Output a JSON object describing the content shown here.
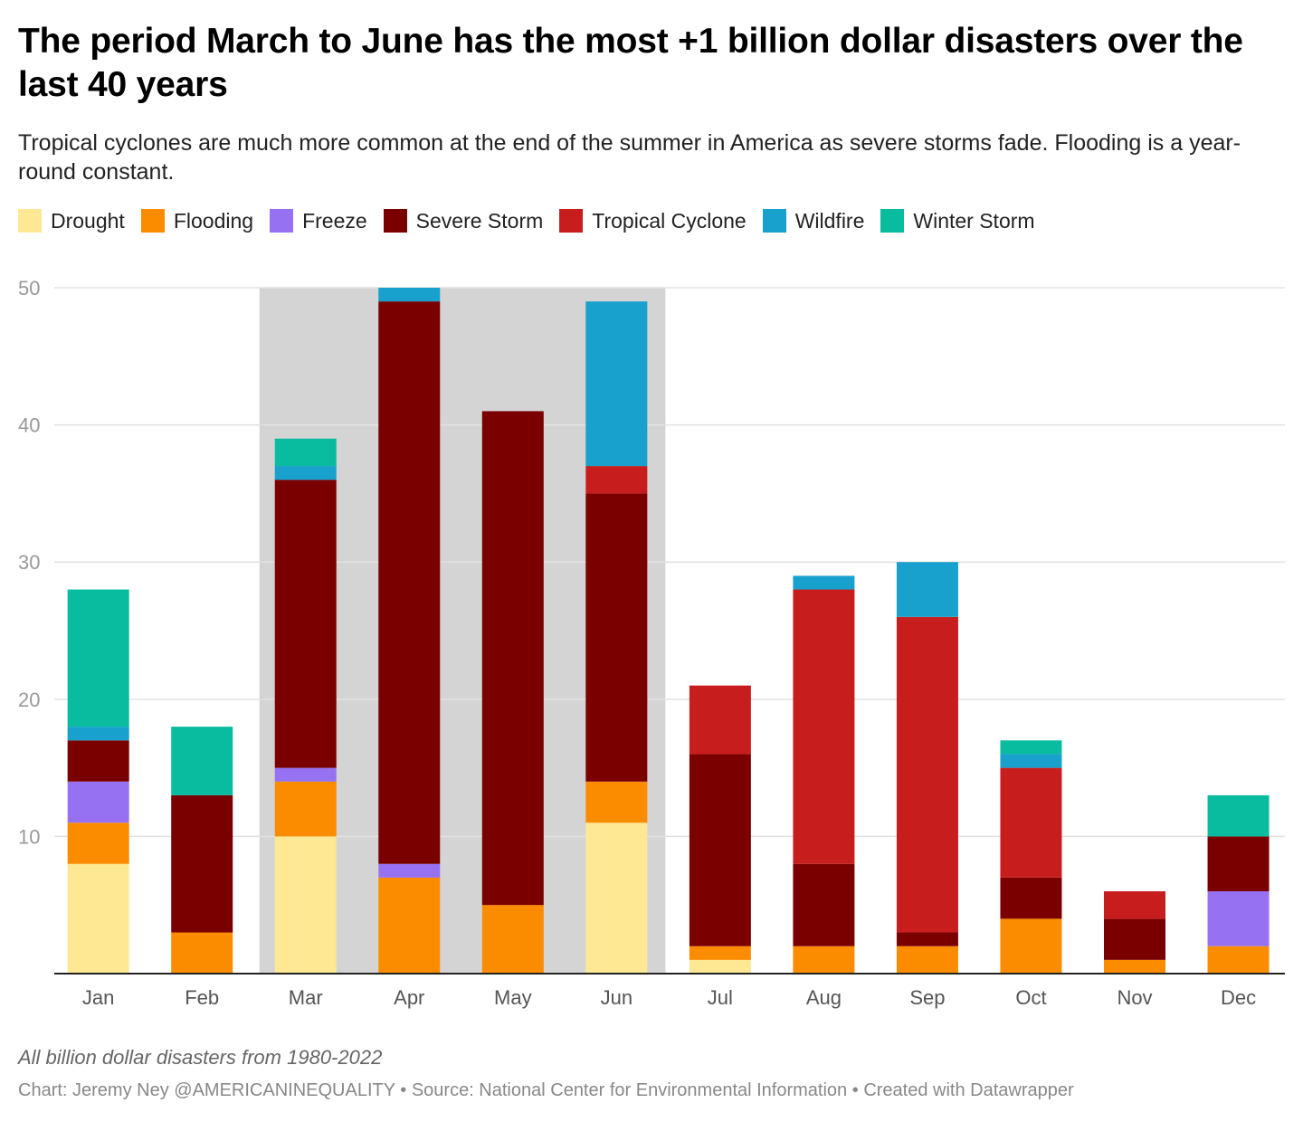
{
  "chart_data": {
    "type": "bar",
    "stacked": true,
    "title": "The period March to June has the most +1 billion dollar disasters over the last 40 years",
    "subtitle": "Tropical cyclones are much more common at the end of the summer in America as severe storms fade. Flooding is a year-round constant.",
    "categories": [
      "Jan",
      "Feb",
      "Mar",
      "Apr",
      "May",
      "Jun",
      "Jul",
      "Aug",
      "Sep",
      "Oct",
      "Nov",
      "Dec"
    ],
    "series": [
      {
        "name": "Drought",
        "color": "#fee893",
        "values": [
          8,
          0,
          10,
          0,
          0,
          11,
          1,
          0,
          0,
          0,
          0,
          0
        ]
      },
      {
        "name": "Flooding",
        "color": "#fb8c00",
        "values": [
          3,
          3,
          4,
          7,
          5,
          3,
          1,
          2,
          2,
          4,
          1,
          2
        ]
      },
      {
        "name": "Freeze",
        "color": "#9672f2",
        "values": [
          3,
          0,
          1,
          1,
          0,
          0,
          0,
          0,
          0,
          0,
          0,
          4
        ]
      },
      {
        "name": "Severe Storm",
        "color": "#7a0000",
        "values": [
          3,
          10,
          21,
          41,
          36,
          21,
          14,
          6,
          1,
          3,
          3,
          4
        ]
      },
      {
        "name": "Tropical Cyclone",
        "color": "#c71e1d",
        "values": [
          0,
          0,
          0,
          0,
          0,
          2,
          5,
          20,
          23,
          8,
          2,
          0
        ]
      },
      {
        "name": "Wildfire",
        "color": "#18a1cd",
        "values": [
          1,
          0,
          1,
          1,
          0,
          12,
          0,
          1,
          4,
          1,
          0,
          0
        ]
      },
      {
        "name": "Winter Storm",
        "color": "#09bb9f",
        "values": [
          10,
          5,
          2,
          0,
          0,
          0,
          0,
          0,
          0,
          1,
          0,
          3
        ]
      }
    ],
    "ylim": [
      0,
      50
    ],
    "yticks": [
      10,
      20,
      30,
      40,
      50
    ],
    "grid": true,
    "legend_position": "top-left",
    "highlight_range": [
      "Mar",
      "Jun"
    ],
    "highlight_color": "#d4d4d4",
    "note": "All billion dollar disasters from 1980-2022"
  },
  "credit": {
    "chart": "Chart: Jeremy Ney @AMERICANINEQUALITY",
    "source": "Source: National Center for Environmental Information",
    "tool": "Created with Datawrapper",
    "separator": " • "
  }
}
